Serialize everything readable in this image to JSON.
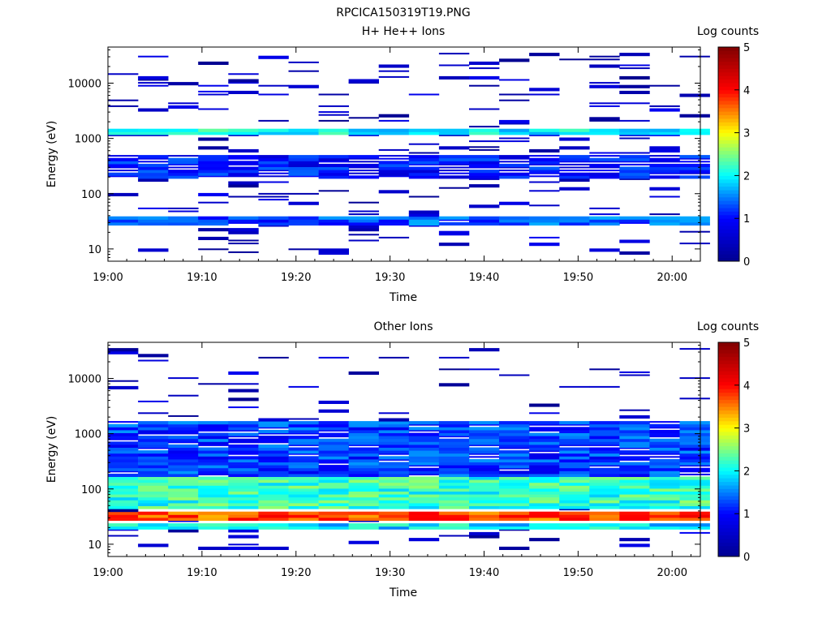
{
  "figure": {
    "title": "RPCICA150319T19.PNG"
  },
  "colors": {
    "colormap": [
      "#00008f",
      "#0000ff",
      "#00ffff",
      "#ffff00",
      "#ff0000",
      "#800000"
    ]
  },
  "chart_data": [
    {
      "type": "heatmap",
      "title": "H+ He++ Ions",
      "xlabel": "Time",
      "ylabel": "Energy (eV)",
      "x_ticks": [
        "19:00",
        "19:10",
        "19:20",
        "19:30",
        "19:40",
        "19:50",
        "20:00"
      ],
      "x_range_min": [
        0,
        63
      ],
      "y_scale": "log",
      "y_ticks": [
        "10",
        "100",
        "1000",
        "10000"
      ],
      "y_range": [
        6,
        45000
      ],
      "colorbar": {
        "label": "Log counts",
        "ticks": [
          "0",
          "1",
          "2",
          "3",
          "4",
          "5"
        ],
        "range": [
          0,
          5
        ]
      },
      "time_bins_min": [
        0,
        3.2,
        6.4,
        9.6,
        12.8,
        16,
        19.2,
        22.4,
        25.6,
        28.8,
        32,
        35.2,
        38.4,
        41.6,
        44.8,
        48,
        51.2,
        54.4,
        57.6,
        60.8
      ],
      "dominant_bands": [
        {
          "energy_eV": [
            27,
            38
          ],
          "level": 1.3
        },
        {
          "energy_eV": [
            180,
            500
          ],
          "level": 1.0
        },
        {
          "energy_eV": [
            1100,
            1400
          ],
          "level": 2.0
        }
      ],
      "peak_log_counts": 2.5
    },
    {
      "type": "heatmap",
      "title": "Other Ions",
      "xlabel": "Time",
      "ylabel": "Energy (eV)",
      "x_ticks": [
        "19:00",
        "19:10",
        "19:20",
        "19:30",
        "19:40",
        "19:50",
        "20:00"
      ],
      "x_range_min": [
        0,
        63
      ],
      "y_scale": "log",
      "y_ticks": [
        "10",
        "100",
        "1000",
        "10000"
      ],
      "y_range": [
        6,
        45000
      ],
      "colorbar": {
        "label": "Log counts",
        "ticks": [
          "0",
          "1",
          "2",
          "3",
          "4",
          "5"
        ],
        "range": [
          0,
          5
        ]
      },
      "time_bins_min": [
        0,
        3.2,
        6.4,
        9.6,
        12.8,
        16,
        19.2,
        22.4,
        25.6,
        28.8,
        32,
        35.2,
        38.4,
        41.6,
        44.8,
        48,
        51.2,
        54.4,
        57.6,
        60.8
      ],
      "dominant_bands": [
        {
          "energy_eV": [
            26,
            38
          ],
          "level": 3.7
        },
        {
          "energy_eV": [
            40,
            150
          ],
          "level": 2.2
        },
        {
          "energy_eV": [
            150,
            1500
          ],
          "level": 1.2
        },
        {
          "energy_eV": [
            18,
            22
          ],
          "level": 1.9
        }
      ],
      "peak_log_counts": 3.8
    }
  ]
}
